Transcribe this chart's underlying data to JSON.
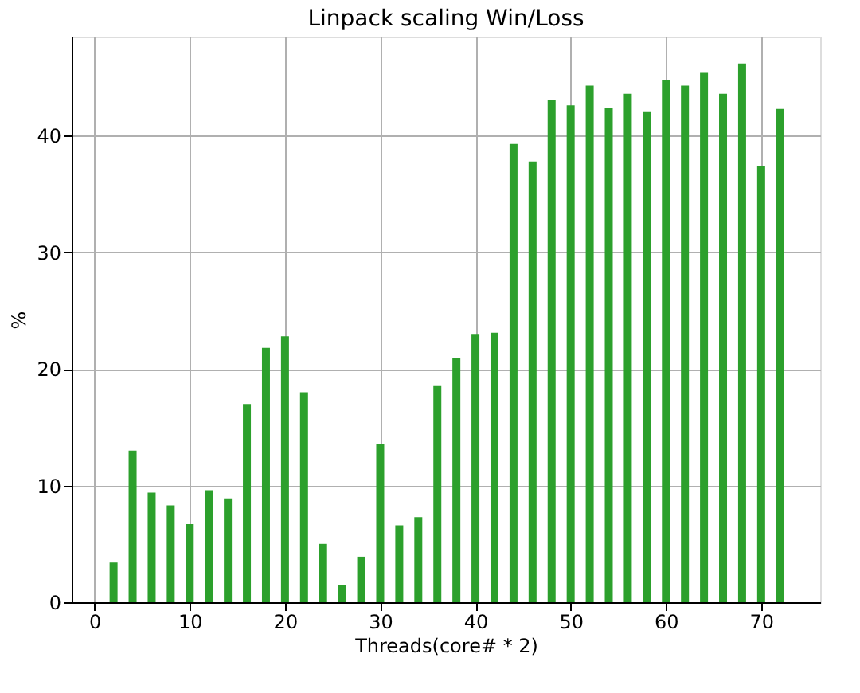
{
  "chart_data": {
    "type": "bar",
    "title": "Linpack scaling Win/Loss",
    "xlabel": "Threads(core# * 2)",
    "ylabel": "%",
    "x": [
      2,
      4,
      6,
      8,
      10,
      12,
      14,
      16,
      18,
      20,
      22,
      24,
      26,
      28,
      30,
      32,
      34,
      36,
      38,
      40,
      42,
      44,
      46,
      48,
      50,
      52,
      54,
      56,
      58,
      60,
      62,
      64,
      66,
      68,
      70,
      72
    ],
    "series": [
      {
        "color": "#2ca02c",
        "values": [
          3.4,
          13,
          9.4,
          8.3,
          6.7,
          9.6,
          8.9,
          17,
          21.8,
          22.8,
          18,
          5,
          1.5,
          3.9,
          13.6,
          6.6,
          7.3,
          18.6,
          20.9,
          23,
          23.1,
          39.3,
          37.8,
          43.1,
          42.6,
          44.3,
          42.4,
          43.6,
          42.1,
          44.8,
          44.3,
          45.4,
          43.6,
          46.2,
          37.4,
          42.3
        ]
      }
    ],
    "xlim": [
      -2.4,
      76.2
    ],
    "xticks": [
      0,
      10,
      20,
      30,
      40,
      50,
      60,
      70
    ],
    "ylim": [
      0,
      48.5
    ],
    "yticks": [
      0,
      10,
      20,
      30,
      40
    ],
    "grid": true
  }
}
